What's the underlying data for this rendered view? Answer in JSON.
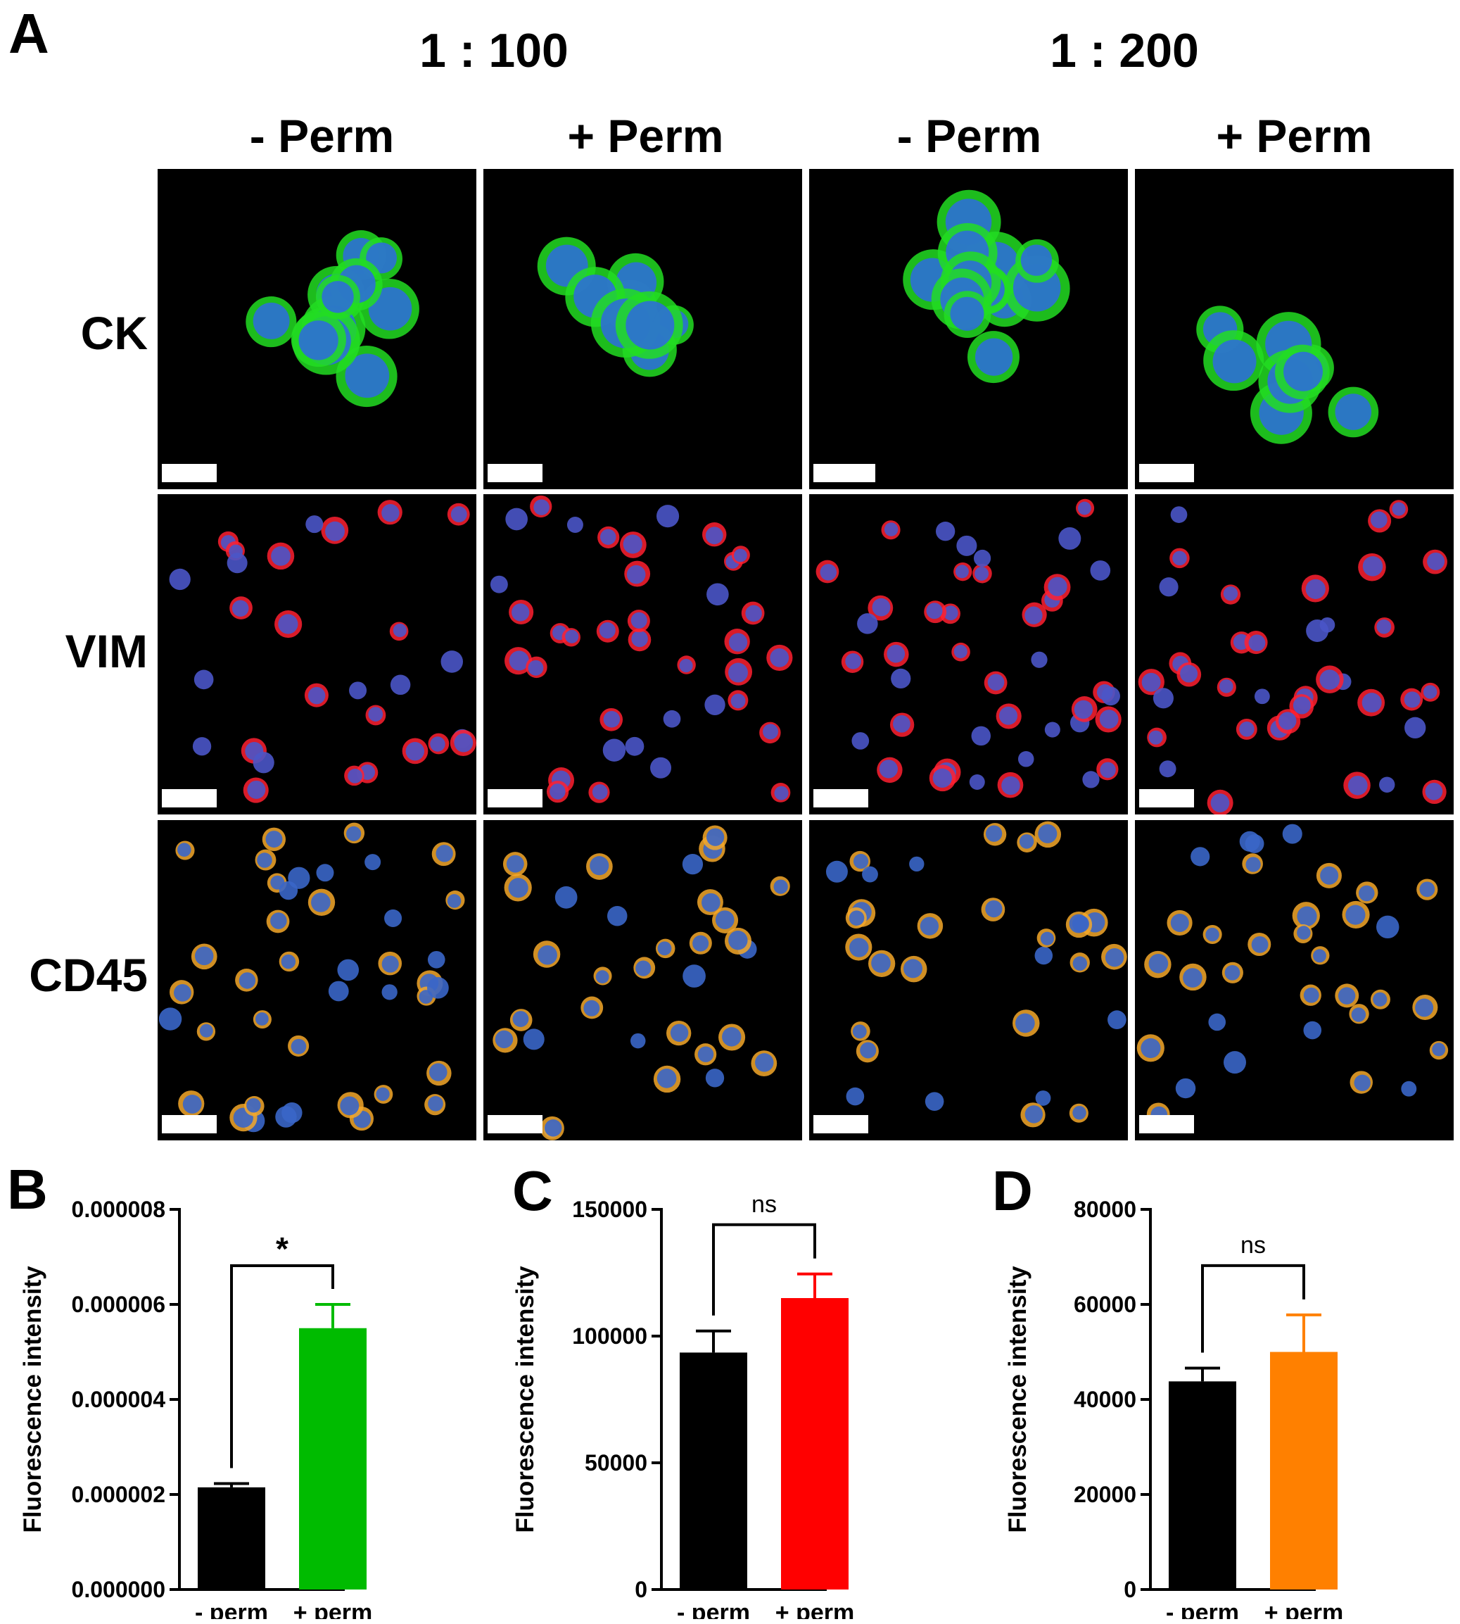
{
  "panel_labels": {
    "a": "A",
    "b": "B",
    "c": "C",
    "d": "D"
  },
  "dilutions": [
    "1 : 100",
    "1 : 200"
  ],
  "columns": [
    "- Perm",
    "+ Perm",
    "- Perm",
    "+ Perm"
  ],
  "rows": [
    {
      "label": "CK",
      "membrane_color": "#22dd22",
      "nucleus_color": "#2e6fd6"
    },
    {
      "label": "VIM",
      "membrane_color": "#ff2030",
      "nucleus_color": "#4a55c8"
    },
    {
      "label": "CD45",
      "membrane_color": "#f4a82a",
      "nucleus_color": "#3a66c8"
    }
  ],
  "chart_data": [
    {
      "type": "bar",
      "categories": [
        "- perm",
        "+ perm"
      ],
      "values": [
        2.15e-06,
        5.5e-06
      ],
      "errors": [
        8e-08,
        5e-07
      ],
      "colors": [
        "#000000",
        "#00bb00"
      ],
      "ylabel": "Fluorescence intensity",
      "ylim": [
        0,
        8e-06
      ],
      "yticks": [
        0,
        2e-06,
        4e-06,
        6e-06,
        8e-06
      ],
      "ytick_labels": [
        "0.000000",
        "0.000002",
        "0.000004",
        "0.000006",
        "0.000008"
      ],
      "significance": "*"
    },
    {
      "type": "bar",
      "categories": [
        "- perm",
        "+ perm"
      ],
      "values": [
        93500,
        115000
      ],
      "errors": [
        8500,
        9500
      ],
      "colors": [
        "#000000",
        "#ff0000"
      ],
      "ylabel": "Fluorescence intensity",
      "ylim": [
        0,
        150000
      ],
      "yticks": [
        0,
        50000,
        100000,
        150000
      ],
      "ytick_labels": [
        "0",
        "50000",
        "100000",
        "150000"
      ],
      "significance": "ns"
    },
    {
      "type": "bar",
      "categories": [
        "- perm",
        "+ perm"
      ],
      "values": [
        43800,
        50000
      ],
      "errors": [
        2800,
        7800
      ],
      "colors": [
        "#000000",
        "#ff8000"
      ],
      "ylabel": "Fluorescence intensity",
      "ylim": [
        0,
        80000
      ],
      "yticks": [
        0,
        20000,
        40000,
        60000,
        80000
      ],
      "ytick_labels": [
        "0",
        "20000",
        "40000",
        "60000",
        "80000"
      ],
      "significance": "ns"
    }
  ]
}
